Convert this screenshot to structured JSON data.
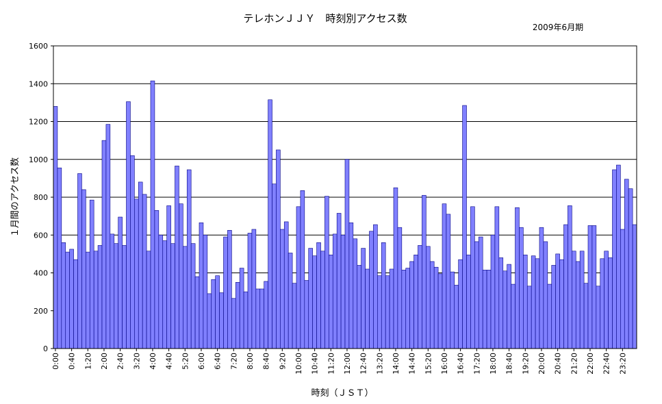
{
  "chart_data": {
    "type": "bar",
    "title": "テレホンＪＪＹ　時刻別アクセス数",
    "subtitle": "2009年6月期",
    "xlabel": "時刻（ＪＳＴ）",
    "ylabel": "１月間のアクセス数",
    "ylim": [
      0,
      1600
    ],
    "yticks": [
      0,
      200,
      400,
      600,
      800,
      1000,
      1200,
      1400,
      1600
    ],
    "grid": true,
    "bar_color": "#8080ff",
    "bar_edge_color": "#000080",
    "x_tick_labels": [
      "0:00",
      "0:40",
      "1:20",
      "2:00",
      "2:40",
      "3:20",
      "4:00",
      "4:40",
      "5:20",
      "6:00",
      "6:40",
      "7:20",
      "8:00",
      "8:40",
      "9:20",
      "10:00",
      "10:40",
      "11:20",
      "12:00",
      "12:40",
      "13:20",
      "14:00",
      "14:40",
      "15:20",
      "16:00",
      "16:40",
      "17:20",
      "18:00",
      "18:40",
      "19:20",
      "20:00",
      "20:40",
      "21:20",
      "22:00",
      "22:40",
      "23:20"
    ],
    "interval_minutes": 10,
    "values": [
      1280,
      955,
      560,
      510,
      525,
      470,
      925,
      840,
      510,
      785,
      515,
      545,
      1100,
      1185,
      605,
      555,
      695,
      545,
      1305,
      1020,
      790,
      880,
      815,
      515,
      1415,
      730,
      600,
      570,
      755,
      555,
      965,
      765,
      540,
      945,
      555,
      380,
      665,
      600,
      290,
      365,
      385,
      295,
      590,
      625,
      265,
      350,
      425,
      300,
      610,
      630,
      315,
      315,
      355,
      1315,
      870,
      1050,
      630,
      670,
      505,
      345,
      750,
      835,
      360,
      530,
      490,
      560,
      515,
      805,
      495,
      605,
      715,
      600,
      1000,
      665,
      580,
      440,
      530,
      420,
      620,
      655,
      385,
      560,
      385,
      420,
      850,
      640,
      415,
      425,
      460,
      495,
      545,
      810,
      540,
      460,
      430,
      395,
      765,
      710,
      405,
      335,
      470,
      1285,
      495,
      750,
      565,
      590,
      415,
      415,
      600,
      750,
      480,
      410,
      445,
      340,
      745,
      640,
      495,
      330,
      490,
      475,
      640,
      565,
      340,
      440,
      500,
      470,
      655,
      755,
      515,
      460,
      515,
      345,
      650,
      650,
      330,
      475,
      515,
      480,
      945,
      970,
      630,
      895,
      845,
      655
    ]
  }
}
